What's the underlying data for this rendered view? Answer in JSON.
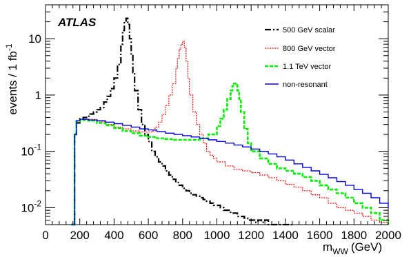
{
  "chart_data": {
    "type": "line",
    "experiment_label": "ATLAS",
    "xlabel": {
      "main": "m",
      "sub": "WW",
      "unit": "(GeV)"
    },
    "ylabel": "events / 1 fb",
    "ylabel_sup": "-1",
    "xlim": [
      0,
      2000
    ],
    "ylim": [
      0.005,
      40
    ],
    "yscale": "log",
    "x_ticks": [
      0,
      200,
      400,
      600,
      800,
      1000,
      1200,
      1400,
      1600,
      1800,
      2000
    ],
    "y_ticks": [
      {
        "value": 0.01,
        "base": "10",
        "exp": "-2"
      },
      {
        "value": 0.1,
        "base": "10",
        "exp": "-1"
      },
      {
        "value": 1,
        "base": "1",
        "exp": ""
      },
      {
        "value": 10,
        "base": "10",
        "exp": ""
      }
    ],
    "grid": false,
    "legend_position": "top-right",
    "series": [
      {
        "name": "500 GeV scalar",
        "color": "#000000",
        "style": "dash-dot",
        "x": [
          150,
          160,
          170,
          180,
          200,
          220,
          240,
          260,
          280,
          300,
          320,
          340,
          360,
          380,
          400,
          420,
          440,
          450,
          460,
          470,
          480,
          490,
          500,
          510,
          520,
          540,
          560,
          580,
          600,
          620,
          640,
          660,
          680,
          700,
          720,
          740,
          760,
          780,
          800,
          820,
          840,
          860,
          880,
          900,
          920,
          940,
          960,
          980,
          1000,
          1020,
          1040,
          1060,
          1080,
          1100,
          1120,
          1140,
          1160,
          1180,
          1200,
          1220,
          1240,
          1260,
          1280,
          1300,
          1320,
          1340,
          1360,
          1380,
          1400,
          1420,
          1440
        ],
        "y": [
          0.005,
          0.005,
          0.2,
          0.32,
          0.38,
          0.4,
          0.42,
          0.46,
          0.5,
          0.55,
          0.6,
          0.75,
          0.95,
          1.3,
          2.0,
          3.5,
          8.0,
          14,
          20,
          23,
          18,
          10,
          5.0,
          2.5,
          1.2,
          0.55,
          0.3,
          0.2,
          0.15,
          0.1,
          0.08,
          0.065,
          0.055,
          0.045,
          0.038,
          0.032,
          0.028,
          0.025,
          0.022,
          0.02,
          0.018,
          0.017,
          0.016,
          0.015,
          0.014,
          0.013,
          0.012,
          0.011,
          0.011,
          0.01,
          0.009,
          0.009,
          0.008,
          0.008,
          0.007,
          0.007,
          0.0065,
          0.006,
          0.006,
          0.0055,
          0.006,
          0.0055,
          0.006,
          0.005,
          0.005,
          0.005,
          0.005,
          0.005,
          0.005,
          0.005,
          0.005
        ]
      },
      {
        "name": "800 GeV vector",
        "color": "#ff0000",
        "style": "dotted",
        "x": [
          150,
          160,
          170,
          180,
          200,
          250,
          300,
          350,
          400,
          450,
          500,
          550,
          600,
          620,
          640,
          660,
          680,
          700,
          720,
          740,
          760,
          770,
          780,
          790,
          800,
          810,
          820,
          830,
          840,
          860,
          880,
          900,
          920,
          940,
          960,
          980,
          1000,
          1050,
          1100,
          1150,
          1200,
          1250,
          1300,
          1350,
          1400,
          1450,
          1500,
          1550,
          1600,
          1650,
          1700,
          1750,
          1800,
          1850,
          1900,
          1950,
          2000
        ],
        "y": [
          0.005,
          0.005,
          0.2,
          0.34,
          0.37,
          0.37,
          0.34,
          0.3,
          0.27,
          0.25,
          0.23,
          0.22,
          0.22,
          0.23,
          0.27,
          0.33,
          0.45,
          0.65,
          1.0,
          1.6,
          3.0,
          4.5,
          6.5,
          8.0,
          9.0,
          7.0,
          4.0,
          2.0,
          1.0,
          0.5,
          0.3,
          0.2,
          0.14,
          0.1,
          0.085,
          0.075,
          0.065,
          0.055,
          0.048,
          0.045,
          0.042,
          0.038,
          0.034,
          0.03,
          0.026,
          0.023,
          0.02,
          0.017,
          0.015,
          0.012,
          0.01,
          0.009,
          0.008,
          0.007,
          0.006,
          0.0055,
          0.005
        ]
      },
      {
        "name": "1.1 TeV vector",
        "color": "#00ee00",
        "style": "dashed",
        "x": [
          150,
          160,
          170,
          180,
          200,
          250,
          300,
          350,
          400,
          450,
          500,
          550,
          600,
          650,
          700,
          750,
          800,
          850,
          900,
          950,
          1000,
          1020,
          1040,
          1060,
          1080,
          1090,
          1100,
          1110,
          1120,
          1130,
          1140,
          1160,
          1180,
          1200,
          1250,
          1300,
          1350,
          1400,
          1450,
          1500,
          1550,
          1600,
          1650,
          1700,
          1750,
          1800,
          1850,
          1900,
          1950,
          2000
        ],
        "y": [
          0.005,
          0.005,
          0.2,
          0.34,
          0.36,
          0.35,
          0.32,
          0.29,
          0.26,
          0.23,
          0.21,
          0.19,
          0.18,
          0.17,
          0.165,
          0.16,
          0.16,
          0.16,
          0.17,
          0.2,
          0.28,
          0.38,
          0.55,
          0.85,
          1.2,
          1.45,
          1.6,
          1.5,
          1.2,
          0.85,
          0.5,
          0.25,
          0.14,
          0.1,
          0.075,
          0.06,
          0.05,
          0.045,
          0.04,
          0.035,
          0.03,
          0.025,
          0.021,
          0.018,
          0.015,
          0.012,
          0.01,
          0.008,
          0.006,
          0.005
        ]
      },
      {
        "name": "non-resonant",
        "color": "#0000dd",
        "style": "solid",
        "x": [
          150,
          160,
          170,
          180,
          200,
          250,
          300,
          350,
          400,
          450,
          500,
          550,
          600,
          650,
          700,
          750,
          800,
          850,
          900,
          950,
          1000,
          1050,
          1100,
          1150,
          1200,
          1250,
          1300,
          1350,
          1400,
          1450,
          1500,
          1550,
          1600,
          1650,
          1700,
          1750,
          1800,
          1850,
          1900,
          1950,
          2000
        ],
        "y": [
          0.005,
          0.005,
          0.2,
          0.35,
          0.37,
          0.36,
          0.35,
          0.33,
          0.31,
          0.29,
          0.27,
          0.25,
          0.24,
          0.225,
          0.21,
          0.2,
          0.19,
          0.18,
          0.17,
          0.16,
          0.15,
          0.14,
          0.13,
          0.12,
          0.11,
          0.1,
          0.09,
          0.08,
          0.07,
          0.06,
          0.052,
          0.045,
          0.039,
          0.034,
          0.029,
          0.025,
          0.021,
          0.018,
          0.015,
          0.012,
          0.01
        ]
      }
    ]
  }
}
